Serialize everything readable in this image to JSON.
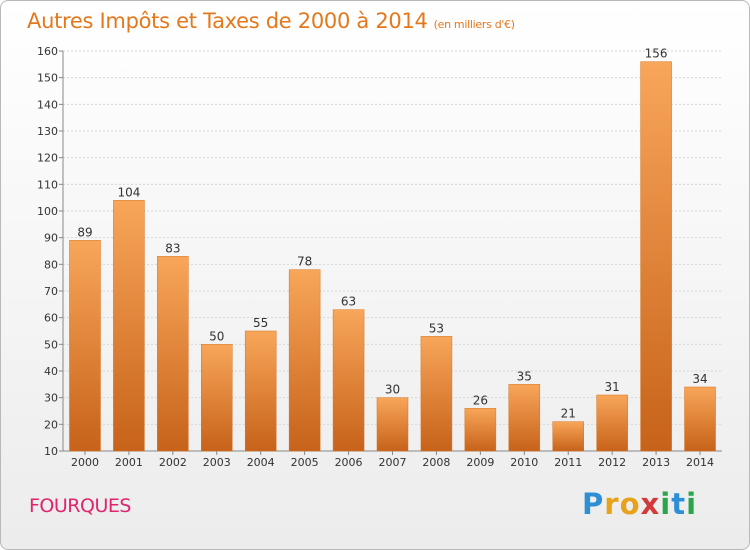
{
  "title": "Autres Impôts et Taxes de 2000 à 2014",
  "unit": "(en milliers d'€)",
  "commune": "FOURQUES",
  "logo": {
    "letters": [
      "P",
      "r",
      "o",
      "x",
      "i",
      "t",
      "i"
    ],
    "colors": [
      "#2f8fd6",
      "#e8a21a",
      "#e8a21a",
      "#d23a3a",
      "#2aa54a",
      "#2f8fd6",
      "#2aa54a"
    ]
  },
  "colors": {
    "bar_light": "#f8a65a",
    "bar_dark": "#c7621a",
    "bar_edge": "#d9731f"
  },
  "chart_data": {
    "type": "bar",
    "title": "Autres Impôts et Taxes de 2000 à 2014",
    "subtitle": "(en milliers d'€)",
    "categories": [
      "2000",
      "2001",
      "2002",
      "2003",
      "2004",
      "2005",
      "2006",
      "2007",
      "2008",
      "2009",
      "2010",
      "2011",
      "2012",
      "2013",
      "2014"
    ],
    "values": [
      89,
      104,
      83,
      50,
      55,
      78,
      63,
      30,
      53,
      26,
      35,
      21,
      31,
      156,
      34
    ],
    "ylim": [
      10,
      160
    ],
    "yticks": [
      10,
      20,
      30,
      40,
      50,
      60,
      70,
      80,
      90,
      100,
      110,
      120,
      130,
      140,
      150,
      160
    ],
    "grid": true,
    "data_labels": true
  }
}
